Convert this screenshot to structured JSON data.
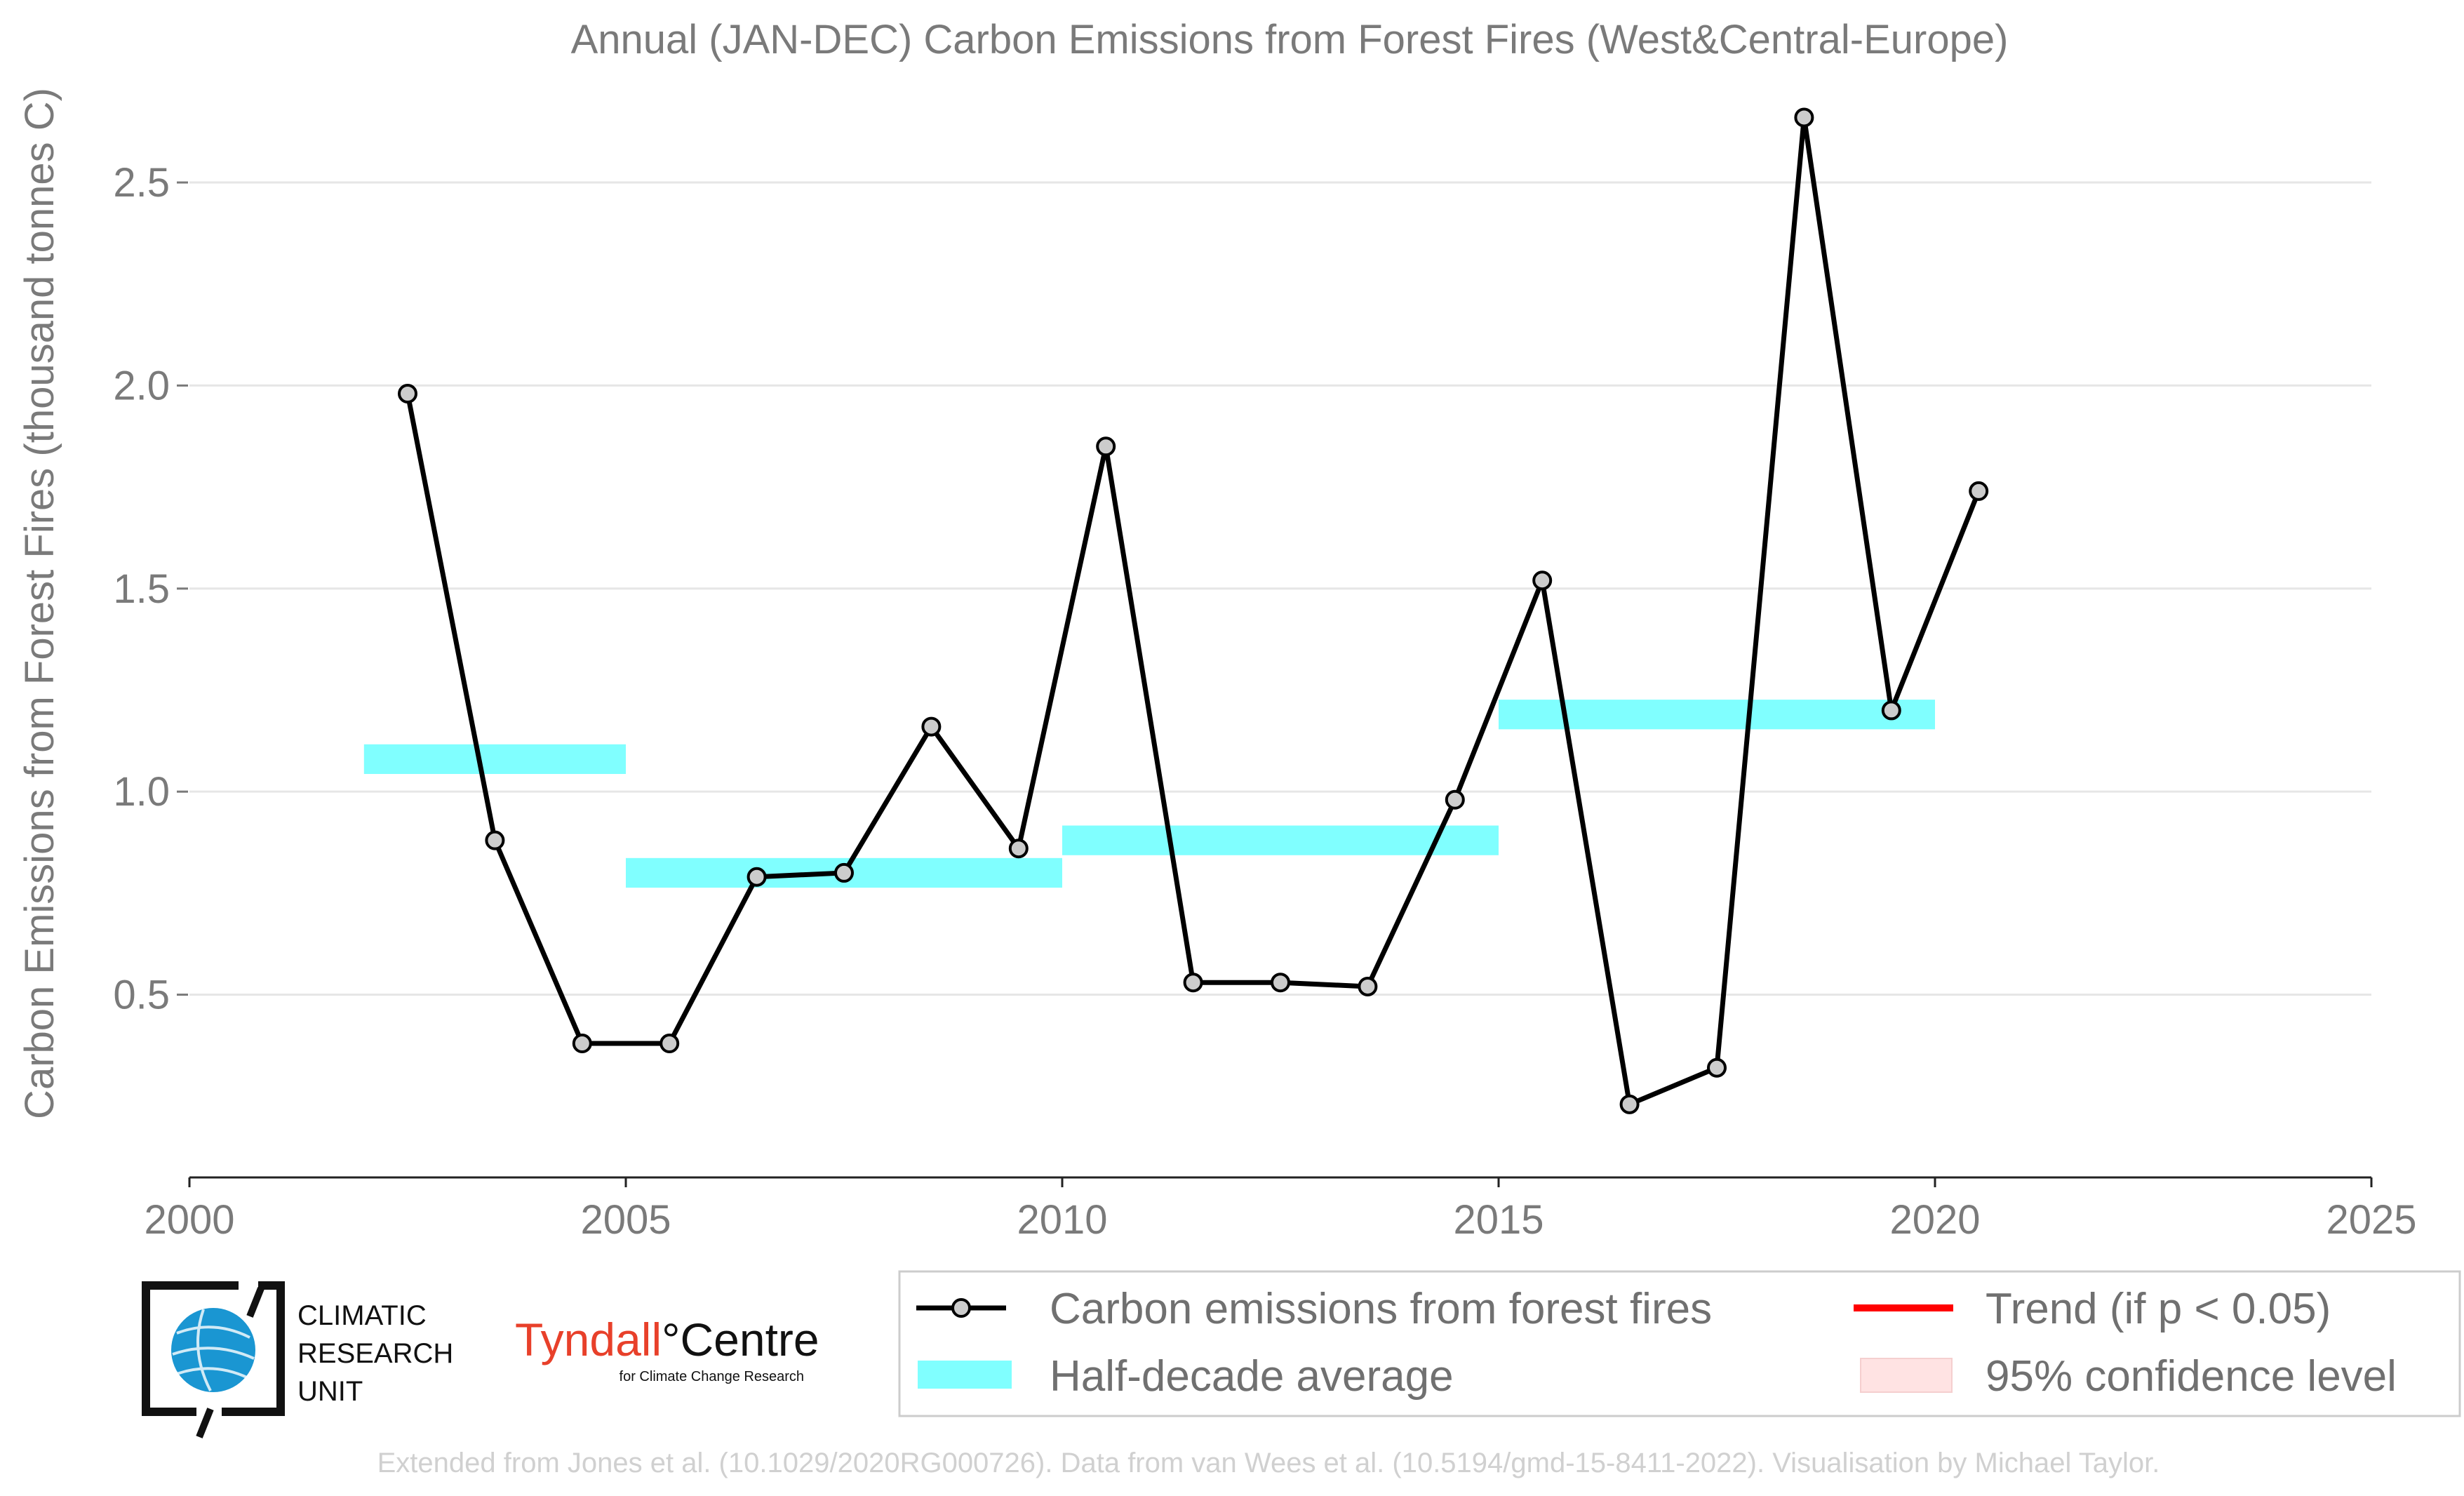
{
  "chart_data": {
    "type": "line",
    "title": "Annual (JAN-DEC) Carbon Emissions from Forest Fires (West&Central-Europe)",
    "xlabel": "",
    "ylabel": "Carbon Emissions from Forest Fires (thousand tonnes C)",
    "xlim": [
      2000,
      2025
    ],
    "ylim": [
      0.05,
      2.78
    ],
    "x_ticks": [
      "2000",
      "2005",
      "2010",
      "2015",
      "2020",
      "2025"
    ],
    "x_tick_values": [
      2000,
      2005,
      2010,
      2015,
      2020,
      2025
    ],
    "y_ticks": [
      "0.5",
      "1.0",
      "1.5",
      "2.0",
      "2.5"
    ],
    "y_tick_values": [
      0.5,
      1.0,
      1.5,
      2.0,
      2.5
    ],
    "grid": "horizontal",
    "series": [
      {
        "name": "Carbon emissions from forest fires",
        "x": [
          2002.5,
          2003.5,
          2004.5,
          2005.5,
          2006.5,
          2007.5,
          2008.5,
          2009.5,
          2010.5,
          2011.5,
          2012.5,
          2013.5,
          2014.5,
          2015.5,
          2016.5,
          2017.5,
          2018.5,
          2019.5,
          2020.5
        ],
        "values": [
          1.98,
          0.88,
          0.38,
          0.38,
          0.79,
          0.8,
          1.16,
          0.86,
          1.85,
          0.53,
          0.53,
          0.52,
          0.98,
          1.52,
          0.23,
          0.32,
          2.66,
          1.2,
          1.74
        ],
        "color": "#000000",
        "marker_fill": "#cccccc"
      }
    ],
    "half_decade_average": {
      "name": "Half-decade average",
      "color": "#80ffff",
      "segments": [
        {
          "x_start": 2002,
          "x_end": 2005,
          "value": 1.08
        },
        {
          "x_start": 2005,
          "x_end": 2010,
          "value": 0.8
        },
        {
          "x_start": 2010,
          "x_end": 2015,
          "value": 0.88
        },
        {
          "x_start": 2015,
          "x_end": 2020,
          "value": 1.19
        }
      ]
    },
    "legend": {
      "placement": "bottom-right",
      "items": [
        {
          "label": "Carbon emissions from forest fires",
          "kind": "line-marker",
          "color": "#000000"
        },
        {
          "label": "Trend (if p < 0.05)",
          "kind": "line",
          "color": "#ff0000"
        },
        {
          "label": "Half-decade average",
          "kind": "band",
          "color": "#80ffff"
        },
        {
          "label": "95% confidence level",
          "kind": "band",
          "color": "#ffe3e3"
        }
      ]
    }
  },
  "logos": {
    "cru": [
      "CLIMATIC",
      "RESEARCH",
      "UNIT"
    ],
    "tyndall_main": "Tyndall",
    "tyndall_centre": "°Centre",
    "tyndall_sub": "for Climate Change Research"
  },
  "footer": "Extended from Jones et al. (10.1029/2020RG000726). Data from van Wees et al. (10.5194/gmd-15-8411-2022). Visualisation by Michael Taylor."
}
